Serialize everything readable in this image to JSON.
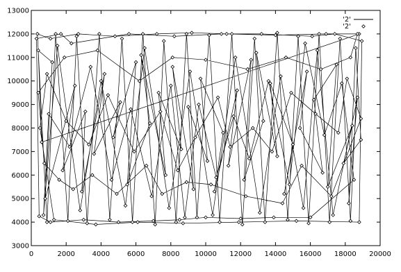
{
  "chart_data": {
    "type": "line",
    "title": "",
    "xlabel": "",
    "ylabel": "",
    "xlim": [
      0,
      20000
    ],
    "ylim": [
      3000,
      13000
    ],
    "x_ticks": [
      0,
      2000,
      4000,
      6000,
      8000,
      10000,
      12000,
      14000,
      16000,
      18000,
      20000
    ],
    "y_ticks": [
      3000,
      4000,
      5000,
      6000,
      7000,
      8000,
      9000,
      10000,
      11000,
      12000,
      13000
    ],
    "x_tick_labels": [
      "0",
      "2000",
      "4000",
      "6000",
      "8000",
      "10000",
      "12000",
      "14000",
      "16000",
      "18000",
      "20000"
    ],
    "y_tick_labels": [
      "3000",
      "4000",
      "5000",
      "6000",
      "7000",
      "8000",
      "9000",
      "10000",
      "11000",
      "12000",
      "13000"
    ],
    "grid": false,
    "legend_position": "top-right",
    "legend": [
      {
        "label": "'2'",
        "style": "line"
      },
      {
        "label": "'2'",
        "style": "points"
      }
    ],
    "series": [
      {
        "style": "linespoints",
        "color": "#000000",
        "marker": "diamond",
        "points": [
          [
            350,
            12000
          ],
          [
            900,
            4000
          ],
          [
            1400,
            12000
          ],
          [
            2100,
            4050
          ],
          [
            2600,
            11900
          ],
          [
            3200,
            3950
          ],
          [
            3900,
            12000
          ],
          [
            4500,
            4100
          ],
          [
            5200,
            11800
          ],
          [
            5800,
            4000
          ],
          [
            6400,
            12000
          ],
          [
            7100,
            3900
          ],
          [
            7600,
            11700
          ],
          [
            8300,
            4000
          ],
          [
            8900,
            12000
          ],
          [
            9500,
            4200
          ],
          [
            10200,
            11950
          ],
          [
            10800,
            4000
          ],
          [
            11500,
            12000
          ],
          [
            12100,
            3900
          ],
          [
            12800,
            11800
          ],
          [
            13400,
            4000
          ],
          [
            14100,
            12050
          ],
          [
            14700,
            4100
          ],
          [
            15300,
            11900
          ],
          [
            15900,
            3950
          ],
          [
            16500,
            12000
          ],
          [
            17100,
            4000
          ],
          [
            17700,
            11800
          ],
          [
            18300,
            4050
          ],
          [
            18800,
            12000
          ],
          [
            600,
            7400
          ],
          [
            400,
            11300
          ],
          [
            1200,
            10800
          ],
          [
            800,
            5000
          ],
          [
            2500,
            9800
          ],
          [
            1800,
            6200
          ],
          [
            3100,
            8700
          ],
          [
            2900,
            5300
          ],
          [
            4200,
            10300
          ],
          [
            3600,
            6900
          ],
          [
            5100,
            9100
          ],
          [
            4700,
            7600
          ],
          [
            6000,
            10800
          ],
          [
            5500,
            5600
          ],
          [
            6800,
            8200
          ],
          [
            6300,
            11100
          ],
          [
            7700,
            6000
          ],
          [
            7300,
            9500
          ],
          [
            8600,
            7100
          ],
          [
            8100,
            10600
          ],
          [
            9300,
            5400
          ],
          [
            9000,
            8900
          ],
          [
            10100,
            6600
          ],
          [
            9700,
            10100
          ],
          [
            11000,
            7800
          ],
          [
            10500,
            5300
          ],
          [
            11800,
            9600
          ],
          [
            11300,
            6400
          ],
          [
            12600,
            10900
          ],
          [
            12200,
            5800
          ],
          [
            13300,
            8300
          ],
          [
            12900,
            11200
          ],
          [
            14100,
            6800
          ],
          [
            13700,
            9900
          ],
          [
            15000,
            7300
          ],
          [
            14500,
            5200
          ],
          [
            15800,
            10400
          ],
          [
            15400,
            8000
          ],
          [
            16700,
            6100
          ],
          [
            16200,
            9200
          ],
          [
            17500,
            10700
          ],
          [
            17000,
            5500
          ],
          [
            18400,
            8100
          ],
          [
            17900,
            6500
          ],
          [
            18900,
            7500
          ],
          [
            18600,
            11400
          ],
          [
            18200,
            4800
          ],
          [
            18700,
            9300
          ],
          [
            17300,
            4300
          ],
          [
            16400,
            11300
          ],
          [
            15600,
            4600
          ],
          [
            14300,
            10200
          ],
          [
            13100,
            4400
          ],
          [
            11700,
            11000
          ],
          [
            10400,
            4300
          ],
          [
            9100,
            10400
          ],
          [
            7900,
            4600
          ],
          [
            6500,
            11400
          ],
          [
            5400,
            4700
          ],
          [
            4000,
            10000
          ],
          [
            2800,
            4500
          ],
          [
            1500,
            11500
          ],
          [
            700,
            4300
          ],
          [
            1000,
            8600
          ],
          [
            2200,
            7200
          ],
          [
            3400,
            10600
          ],
          [
            4600,
            5800
          ],
          [
            5700,
            8800
          ],
          [
            6900,
            5100
          ],
          [
            8000,
            9800
          ],
          [
            8800,
            4200
          ],
          [
            9600,
            9000
          ],
          [
            10600,
            5900
          ],
          [
            11600,
            8500
          ],
          [
            12500,
            6700
          ],
          [
            13600,
            10000
          ],
          [
            14800,
            5600
          ],
          [
            15700,
            11600
          ],
          [
            16800,
            7700
          ],
          [
            17800,
            9900
          ],
          [
            18500,
            5800
          ],
          [
            16000,
            4200
          ],
          [
            13900,
            4200
          ],
          [
            12000,
            4150
          ],
          [
            10000,
            4200
          ],
          [
            8500,
            4100
          ],
          [
            7000,
            4050
          ],
          [
            5000,
            4000
          ],
          [
            3000,
            4100
          ],
          [
            1100,
            4000
          ],
          [
            450,
            4250
          ],
          [
            300,
            11800
          ],
          [
            1700,
            12000
          ],
          [
            2300,
            11600
          ],
          [
            5600,
            12000
          ],
          [
            8200,
            11900
          ],
          [
            10900,
            12000
          ],
          [
            13200,
            12000
          ],
          [
            16100,
            11900
          ],
          [
            17400,
            12000
          ],
          [
            18950,
            11700
          ],
          [
            18800,
            4000
          ],
          [
            15200,
            4050
          ],
          [
            11900,
            4000
          ],
          [
            8700,
            3950
          ],
          [
            6100,
            4000
          ],
          [
            3700,
            3900
          ],
          [
            1300,
            4100
          ],
          [
            500,
            8000
          ],
          [
            900,
            10300
          ],
          [
            2000,
            8300
          ],
          [
            3300,
            7300
          ],
          [
            4400,
            9400
          ],
          [
            5900,
            7000
          ],
          [
            7400,
            8700
          ],
          [
            8400,
            6200
          ],
          [
            9400,
            7600
          ],
          [
            10700,
            9300
          ],
          [
            11400,
            7200
          ],
          [
            12700,
            8000
          ],
          [
            13800,
            7000
          ],
          [
            14900,
            9500
          ],
          [
            16300,
            8600
          ],
          [
            17600,
            7800
          ],
          [
            18100,
            10100
          ],
          [
            18900,
            8400
          ],
          [
            17200,
            5100
          ],
          [
            15500,
            6400
          ],
          [
            14400,
            4800
          ],
          [
            12300,
            5100
          ],
          [
            10300,
            5600
          ],
          [
            8900,
            5700
          ],
          [
            7500,
            5200
          ],
          [
            6600,
            6400
          ],
          [
            4900,
            5200
          ],
          [
            3500,
            6000
          ],
          [
            2400,
            5400
          ],
          [
            1600,
            5800
          ],
          [
            750,
            6500
          ],
          [
            400,
            9500
          ],
          [
            1900,
            11000
          ],
          [
            3800,
            11300
          ],
          [
            6200,
            10000
          ],
          [
            8100,
            11000
          ],
          [
            10000,
            10900
          ],
          [
            12400,
            10500
          ],
          [
            14600,
            11000
          ],
          [
            16600,
            10500
          ],
          [
            18300,
            11000
          ],
          [
            18700,
            12000
          ],
          [
            16900,
            12000
          ],
          [
            14000,
            11950
          ],
          [
            11200,
            12000
          ],
          [
            9200,
            12050
          ],
          [
            7200,
            12000
          ],
          [
            4800,
            11900
          ],
          [
            2700,
            12000
          ],
          [
            1100,
            11800
          ],
          [
            350,
            12000
          ]
        ]
      }
    ]
  }
}
